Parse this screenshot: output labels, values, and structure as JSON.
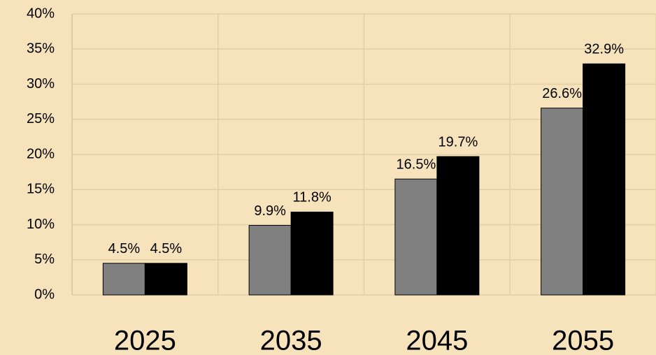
{
  "chart_data": {
    "type": "bar",
    "categories": [
      "2025",
      "2035",
      "2045",
      "2055"
    ],
    "series": [
      {
        "color": "#808080",
        "values": [
          4.5,
          9.9,
          16.5,
          26.6
        ],
        "value_labels": [
          "4.5%",
          "9.9%",
          "16.5%",
          "26.6%"
        ]
      },
      {
        "color": "#000000",
        "values": [
          4.5,
          11.8,
          19.7,
          32.9
        ],
        "value_labels": [
          "4.5%",
          "11.8%",
          "19.7%",
          "32.9%"
        ]
      }
    ],
    "ylim": [
      0,
      40
    ],
    "yticks": [
      {
        "value": 0,
        "label": "0%"
      },
      {
        "value": 5,
        "label": "5%"
      },
      {
        "value": 10,
        "label": "10%"
      },
      {
        "value": 15,
        "label": "15%"
      },
      {
        "value": 20,
        "label": "20%"
      },
      {
        "value": 25,
        "label": "25%"
      },
      {
        "value": 30,
        "label": "30%"
      },
      {
        "value": 35,
        "label": "35%"
      },
      {
        "value": 40,
        "label": "40%"
      }
    ],
    "grid": true
  }
}
